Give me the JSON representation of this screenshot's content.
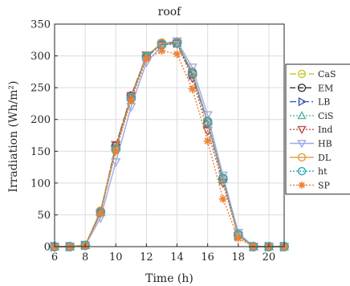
{
  "chart_data": {
    "type": "line",
    "title": "roof",
    "xlabel": "Time (h)",
    "ylabel": "Irradiation (Wh/m²)",
    "xlim": [
      6,
      21
    ],
    "ylim": [
      0,
      350
    ],
    "xticks": [
      6,
      8,
      10,
      12,
      14,
      16,
      18,
      20
    ],
    "yticks": [
      0,
      50,
      100,
      150,
      200,
      250,
      300,
      350
    ],
    "grid": true,
    "legend_position": "right, outside (partially clipped)",
    "x": [
      6,
      7,
      8,
      9,
      10,
      11,
      12,
      13,
      14,
      15,
      16,
      17,
      18,
      19,
      20,
      21
    ],
    "series": [
      {
        "name": "CaS",
        "color": "#c8c832",
        "marker": "circle",
        "dash": "8,4",
        "values": [
          0,
          0,
          2,
          55,
          155,
          235,
          300,
          320,
          320,
          275,
          195,
          108,
          18,
          0,
          0,
          0
        ]
      },
      {
        "name": "EM",
        "color": "#333333",
        "marker": "circle",
        "dash": "7,3",
        "values": [
          0,
          0,
          2,
          55,
          158,
          237,
          300,
          320,
          322,
          272,
          195,
          107,
          18,
          0,
          0,
          0
        ]
      },
      {
        "name": "LB",
        "color": "#3a5fae",
        "marker": "triangle-right",
        "dash": "8,3,2,3",
        "values": [
          0,
          0,
          2,
          53,
          155,
          235,
          298,
          318,
          320,
          270,
          193,
          105,
          17,
          0,
          0,
          0
        ]
      },
      {
        "name": "CiS",
        "color": "#5fb5a5",
        "marker": "triangle-up",
        "dash": "2,2",
        "values": [
          0,
          0,
          2,
          54,
          156,
          236,
          299,
          319,
          321,
          273,
          196,
          106,
          18,
          0,
          0,
          0
        ]
      },
      {
        "name": "Ind",
        "color": "#c0504d",
        "marker": "triangle-down",
        "dash": "2,2",
        "values": [
          0,
          0,
          2,
          52,
          160,
          237,
          301,
          317,
          319,
          265,
          182,
          100,
          17,
          0,
          0,
          0
        ]
      },
      {
        "name": "HB",
        "color": "#a0a8e8",
        "marker": "triangle-down",
        "dash": "",
        "values": [
          0,
          0,
          2,
          45,
          133,
          220,
          290,
          315,
          323,
          282,
          207,
          112,
          22,
          0,
          0,
          0
        ]
      },
      {
        "name": "DL",
        "color": "#e69a3c",
        "marker": "circle",
        "dash": "",
        "values": [
          0,
          0,
          2,
          56,
          154,
          234,
          300,
          320,
          321,
          274,
          196,
          106,
          17,
          0,
          0,
          0
        ]
      },
      {
        "name": "ht",
        "color": "#2aa6b8",
        "marker": "circle",
        "dash": "2,2",
        "values": [
          0,
          0,
          2,
          54,
          153,
          233,
          299,
          318,
          320,
          273,
          197,
          107,
          19,
          0,
          0,
          0
        ]
      },
      {
        "name": "SP",
        "color": "#f08030",
        "marker": "asterisk",
        "dash": "2,2",
        "values": [
          0,
          0,
          1,
          52,
          150,
          230,
          295,
          308,
          303,
          248,
          166,
          75,
          13,
          0,
          0,
          0
        ]
      }
    ]
  }
}
